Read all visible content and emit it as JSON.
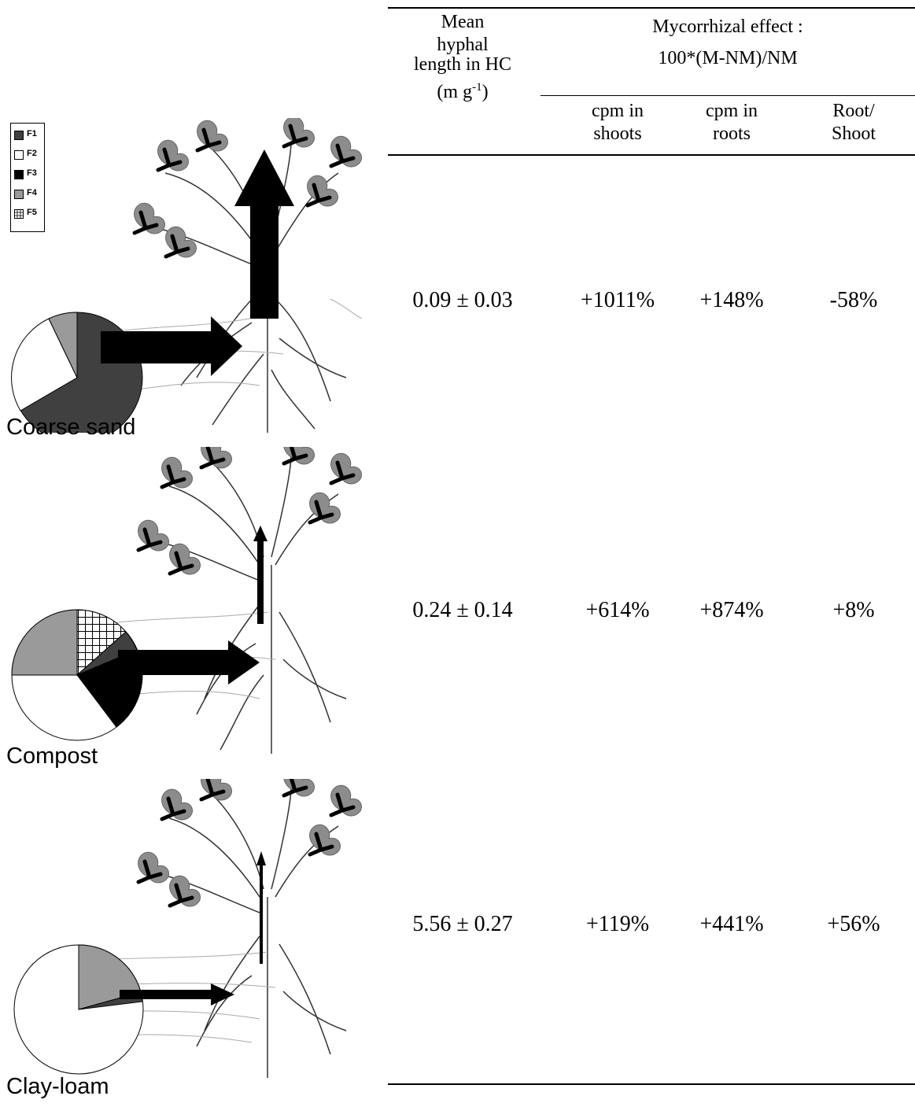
{
  "table": {
    "header": {
      "col1_line1": "Mean",
      "col1_line2": "hyphal",
      "col1_line3": "length in HC",
      "col1_unit_pre": "(m g",
      "col1_unit_sup": "-1",
      "col1_unit_post": ")",
      "group_line1": "Mycorrhizal effect :",
      "group_line2": "100*(M-NM)/NM",
      "sub1_line1": "cpm in",
      "sub1_line2": "shoots",
      "sub2_line1": "cpm in",
      "sub2_line2": "roots",
      "sub3_line1": "Root/",
      "sub3_line2": "Shoot"
    },
    "rows": [
      {
        "hyphal": "0.09 ± 0.03",
        "shoots": "+1011%",
        "roots": "+148%",
        "ratio": "-58%"
      },
      {
        "hyphal": "0.24 ± 0.14",
        "shoots": "+614%",
        "roots": "+874%",
        "ratio": "+8%"
      },
      {
        "hyphal": "5.56 ± 0.27",
        "shoots": "+119%",
        "roots": "+441%",
        "ratio": "+56%"
      }
    ]
  },
  "legend": [
    {
      "label": "F1",
      "color": "#404040"
    },
    {
      "label": "F2",
      "color": "#ffffff"
    },
    {
      "label": "F3",
      "color": "#000000"
    },
    {
      "label": "F4",
      "color": "#9a9a9a"
    },
    {
      "label": "F5",
      "color": "hatch"
    }
  ],
  "soils": [
    {
      "label": "Coarse sand",
      "fractions": [
        {
          "fraction": "F1",
          "percent": 65
        },
        {
          "fraction": "F2",
          "percent": 24
        },
        {
          "fraction": "F4",
          "percent": 6
        },
        {
          "fraction": "F3",
          "percent": 5
        }
      ]
    },
    {
      "label": "Compost",
      "fractions": [
        {
          "fraction": "F5",
          "percent": 19
        },
        {
          "fraction": "F1",
          "percent": 6
        },
        {
          "fraction": "F3",
          "percent": 13
        },
        {
          "fraction": "F2",
          "percent": 41
        },
        {
          "fraction": "F4",
          "percent": 21
        }
      ]
    },
    {
      "label": "Clay-loam",
      "fractions": [
        {
          "fraction": "F4",
          "percent": 21
        },
        {
          "fraction": "F1",
          "percent": 2
        },
        {
          "fraction": "F2",
          "percent": 77
        }
      ]
    }
  ]
}
